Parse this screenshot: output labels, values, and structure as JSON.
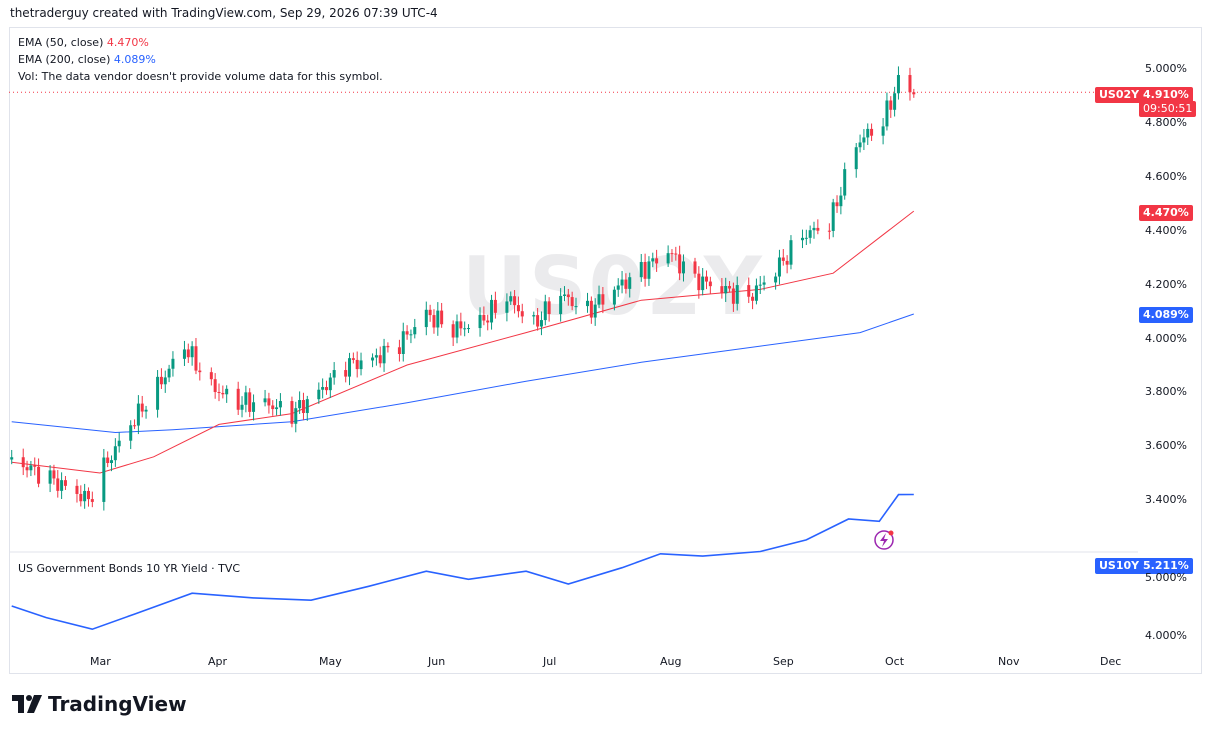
{
  "header": {
    "credit": "thetraderguy created with TradingView.com, Sep 29, 2026 07:39 UTC-4"
  },
  "watermark": "US02Y",
  "legend": {
    "ema50_label": "EMA (50, close)",
    "ema50_value": "4.470%",
    "ema200_label": "EMA (200, close)",
    "ema200_value": "4.089%",
    "vol_note": "Vol: The data vendor doesn't provide volume data for this symbol."
  },
  "price_tags": {
    "symbol": "US02Y",
    "last": "4.910%",
    "countdown": "09:50:51",
    "ema50": "4.470%",
    "ema200": "4.089%"
  },
  "colors": {
    "up": "#089981",
    "down": "#f23645",
    "ema50": "#f23645",
    "ema200": "#2962ff",
    "us10y": "#2962ff"
  },
  "lower_pane": {
    "title": "US Government Bonds 10 YR Yield · TVC",
    "symbol": "US10Y",
    "last": "5.211%",
    "yticks": [
      "5.000%",
      "4.000%"
    ]
  },
  "x_axis": [
    "Mar",
    "Apr",
    "May",
    "Jun",
    "Jul",
    "Aug",
    "Sep",
    "Oct",
    "Nov",
    "Dec"
  ],
  "y_axis": [
    "5.000%",
    "4.800%",
    "4.600%",
    "4.400%",
    "4.200%",
    "4.000%",
    "3.800%",
    "3.600%",
    "3.400%"
  ],
  "brand": {
    "name": "TradingView",
    "logo_icon": "tradingview-logo-icon"
  },
  "alert_icon": "lightning-alert-icon",
  "chart_data": [
    {
      "type": "candlestick",
      "symbol": "US02Y",
      "x_range": [
        "2026-02-06",
        "2026-12-31"
      ],
      "ylim": [
        3.3,
        5.05
      ],
      "grid": false,
      "note": "Daily candles, anchor closes interpolated; values in percent",
      "close_anchors": [
        {
          "date": "2026-02-06",
          "v": 3.55
        },
        {
          "date": "2026-02-16",
          "v": 3.48
        },
        {
          "date": "2026-02-26",
          "v": 3.4
        },
        {
          "date": "2026-03-02",
          "v": 3.52
        },
        {
          "date": "2026-03-09",
          "v": 3.68
        },
        {
          "date": "2026-03-16",
          "v": 3.82
        },
        {
          "date": "2026-03-23",
          "v": 3.97
        },
        {
          "date": "2026-03-30",
          "v": 3.82
        },
        {
          "date": "2026-04-06",
          "v": 3.76
        },
        {
          "date": "2026-04-13",
          "v": 3.76
        },
        {
          "date": "2026-04-20",
          "v": 3.72
        },
        {
          "date": "2026-04-27",
          "v": 3.8
        },
        {
          "date": "2026-05-04",
          "v": 3.9
        },
        {
          "date": "2026-05-11",
          "v": 3.92
        },
        {
          "date": "2026-05-18",
          "v": 3.98
        },
        {
          "date": "2026-05-25",
          "v": 4.09
        },
        {
          "date": "2026-06-01",
          "v": 4.03
        },
        {
          "date": "2026-06-08",
          "v": 4.06
        },
        {
          "date": "2026-06-15",
          "v": 4.15
        },
        {
          "date": "2026-06-22",
          "v": 4.05
        },
        {
          "date": "2026-06-29",
          "v": 4.16
        },
        {
          "date": "2026-07-06",
          "v": 4.1
        },
        {
          "date": "2026-07-13",
          "v": 4.18
        },
        {
          "date": "2026-07-20",
          "v": 4.25
        },
        {
          "date": "2026-07-27",
          "v": 4.32
        },
        {
          "date": "2026-08-03",
          "v": 4.22
        },
        {
          "date": "2026-08-10",
          "v": 4.18
        },
        {
          "date": "2026-08-17",
          "v": 4.15
        },
        {
          "date": "2026-08-24",
          "v": 4.25
        },
        {
          "date": "2026-08-31",
          "v": 4.38
        },
        {
          "date": "2026-09-07",
          "v": 4.42
        },
        {
          "date": "2026-09-14",
          "v": 4.72
        },
        {
          "date": "2026-09-21",
          "v": 4.8
        },
        {
          "date": "2026-09-25",
          "v": 4.95
        },
        {
          "date": "2026-09-29",
          "v": 4.91
        }
      ],
      "ema50": [
        {
          "date": "2026-02-06",
          "v": 3.54
        },
        {
          "date": "2026-03-01",
          "v": 3.5
        },
        {
          "date": "2026-03-15",
          "v": 3.56
        },
        {
          "date": "2026-04-01",
          "v": 3.68
        },
        {
          "date": "2026-04-20",
          "v": 3.72
        },
        {
          "date": "2026-05-20",
          "v": 3.9
        },
        {
          "date": "2026-06-20",
          "v": 4.02
        },
        {
          "date": "2026-07-20",
          "v": 4.14
        },
        {
          "date": "2026-08-20",
          "v": 4.18
        },
        {
          "date": "2026-09-08",
          "v": 4.24
        },
        {
          "date": "2026-09-29",
          "v": 4.47
        }
      ],
      "ema200": [
        {
          "date": "2026-02-06",
          "v": 3.69
        },
        {
          "date": "2026-03-05",
          "v": 3.65
        },
        {
          "date": "2026-03-20",
          "v": 3.66
        },
        {
          "date": "2026-04-20",
          "v": 3.69
        },
        {
          "date": "2026-05-20",
          "v": 3.76
        },
        {
          "date": "2026-06-20",
          "v": 3.84
        },
        {
          "date": "2026-07-20",
          "v": 3.91
        },
        {
          "date": "2026-08-20",
          "v": 3.97
        },
        {
          "date": "2026-09-15",
          "v": 4.02
        },
        {
          "date": "2026-09-29",
          "v": 4.089
        }
      ]
    },
    {
      "type": "line",
      "symbol": "US10Y",
      "ylim": [
        3.85,
        5.35
      ],
      "grid": false,
      "values": [
        {
          "date": "2026-02-06",
          "v": 4.25
        },
        {
          "date": "2026-02-15",
          "v": 4.15
        },
        {
          "date": "2026-02-27",
          "v": 4.05
        },
        {
          "date": "2026-03-10",
          "v": 4.18
        },
        {
          "date": "2026-03-25",
          "v": 4.36
        },
        {
          "date": "2026-04-10",
          "v": 4.32
        },
        {
          "date": "2026-04-25",
          "v": 4.3
        },
        {
          "date": "2026-05-10",
          "v": 4.42
        },
        {
          "date": "2026-05-25",
          "v": 4.55
        },
        {
          "date": "2026-06-05",
          "v": 4.48
        },
        {
          "date": "2026-06-20",
          "v": 4.55
        },
        {
          "date": "2026-07-01",
          "v": 4.44
        },
        {
          "date": "2026-07-15",
          "v": 4.58
        },
        {
          "date": "2026-07-25",
          "v": 4.7
        },
        {
          "date": "2026-08-05",
          "v": 4.68
        },
        {
          "date": "2026-08-20",
          "v": 4.72
        },
        {
          "date": "2026-09-01",
          "v": 4.82
        },
        {
          "date": "2026-09-12",
          "v": 5.0
        },
        {
          "date": "2026-09-20",
          "v": 4.98
        },
        {
          "date": "2026-09-25",
          "v": 5.21
        },
        {
          "date": "2026-09-29",
          "v": 5.211
        }
      ]
    }
  ]
}
